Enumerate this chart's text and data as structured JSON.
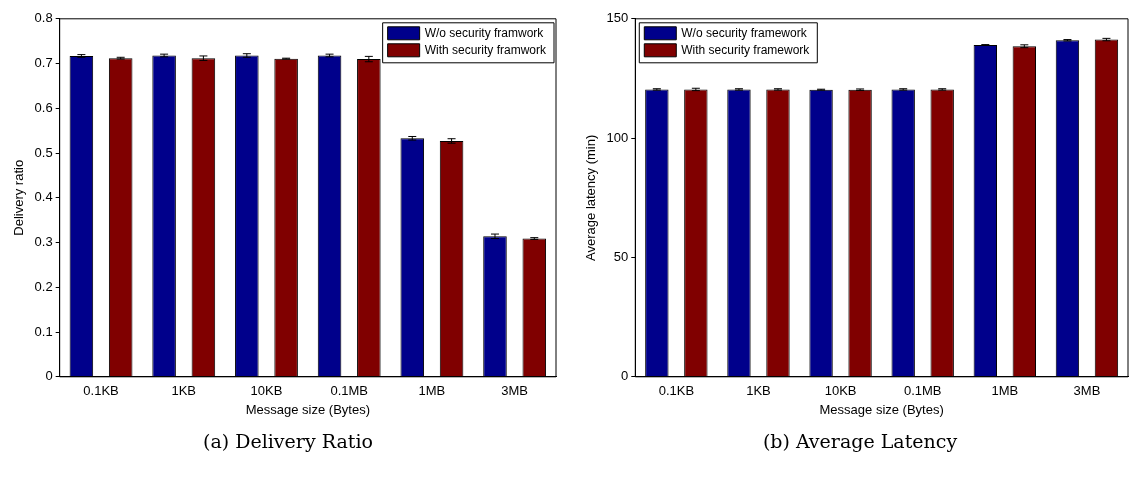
{
  "chart_data": [
    {
      "type": "bar",
      "title": "(a) Delivery Ratio",
      "xlabel": "Message size (Bytes)",
      "ylabel": "Delivery ratio",
      "categories": [
        "0.1KB",
        "1KB",
        "10KB",
        "0.1MB",
        "1MB",
        "3MB"
      ],
      "series": [
        {
          "name": "W/o security framwork",
          "color": "#00008b",
          "values": [
            0.717,
            0.718,
            0.718,
            0.718,
            0.533,
            0.314
          ],
          "errors": [
            0.003,
            0.003,
            0.004,
            0.003,
            0.004,
            0.005
          ]
        },
        {
          "name": "With security framwork",
          "color": "#800000",
          "values": [
            0.712,
            0.712,
            0.711,
            0.71,
            0.527,
            0.309
          ],
          "errors": [
            0.002,
            0.005,
            0.001,
            0.006,
            0.005,
            0.002
          ]
        }
      ],
      "ylim": [
        0,
        0.8
      ],
      "yticks": [
        0,
        0.1,
        0.2,
        0.3,
        0.4,
        0.5,
        0.6,
        0.7,
        0.8
      ],
      "grid": false,
      "legend": "top right"
    },
    {
      "type": "bar",
      "title": "(b) Average Latency",
      "xlabel": "Message size (Bytes)",
      "ylabel": "Average latency (min)",
      "categories": [
        "0.1KB",
        "1KB",
        "10KB",
        "0.1MB",
        "1MB",
        "3MB"
      ],
      "series": [
        {
          "name": "W/o security framework",
          "color": "#00008b",
          "values": [
            120.4,
            120.4,
            120.3,
            120.4,
            139,
            141
          ],
          "errors": [
            0.3,
            0.3,
            0.2,
            0.3,
            0.2,
            0.3
          ]
        },
        {
          "name": "With security framework",
          "color": "#800000",
          "values": [
            120.4,
            120.4,
            120.3,
            120.4,
            138.5,
            141.3
          ],
          "errors": [
            0.5,
            0.3,
            0.3,
            0.3,
            0.6,
            0.5
          ]
        }
      ],
      "ylim": [
        0,
        150
      ],
      "yticks": [
        0,
        50,
        100,
        150
      ],
      "grid": false,
      "legend": "top left"
    }
  ]
}
